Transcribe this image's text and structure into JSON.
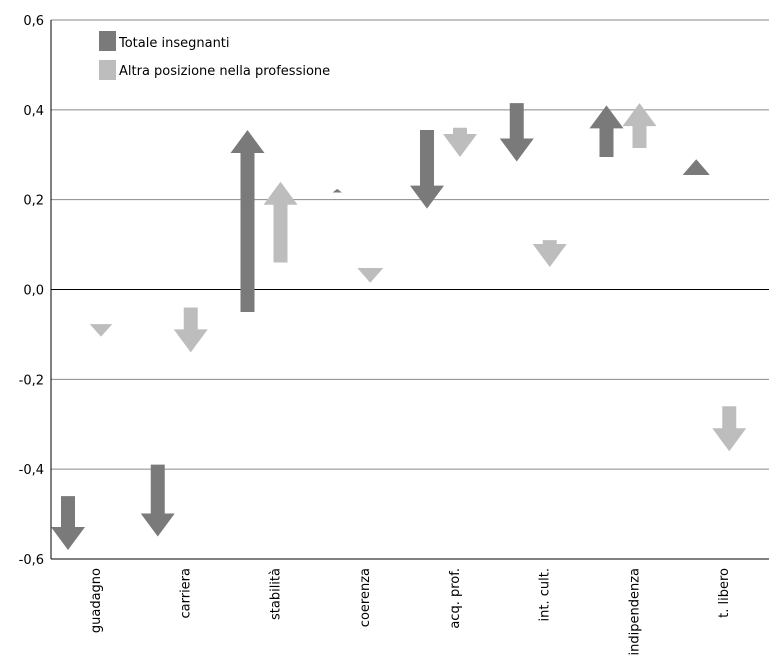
{
  "chart_data": {
    "type": "arrow-range",
    "title": "",
    "xlabel": "",
    "ylabel": "",
    "ylim": [
      -0.6,
      0.6
    ],
    "y_ticks": [
      0.6,
      0.4,
      0.2,
      0.0,
      -0.2,
      -0.4,
      -0.6
    ],
    "y_tick_labels": [
      "0,6",
      "0,4",
      "0,2",
      "0,0",
      "-0,2",
      "-0,4",
      "-0,6"
    ],
    "grid": true,
    "legend_position": "top-left",
    "categories": [
      "guadagno",
      "carriera",
      "stabilità",
      "coerenza",
      "acq. prof.",
      "int. cult.",
      "indipendenza",
      "t. libero"
    ],
    "series": [
      {
        "name": "Totale insegnanti",
        "color": "#7a7a7a",
        "from": [
          -0.46,
          -0.39,
          -0.05,
          0.216,
          0.355,
          0.415,
          0.295,
          0.255
        ],
        "to": [
          -0.58,
          -0.55,
          0.355,
          0.224,
          0.18,
          0.285,
          0.41,
          0.29
        ]
      },
      {
        "name": "Altra posizione nella professione",
        "color": "#bdbdbd",
        "from": [
          -0.077,
          -0.04,
          0.06,
          0.048,
          0.36,
          0.11,
          0.315,
          -0.26
        ],
        "to": [
          -0.105,
          -0.14,
          0.24,
          0.015,
          0.295,
          0.05,
          0.415,
          -0.36
        ]
      }
    ]
  }
}
